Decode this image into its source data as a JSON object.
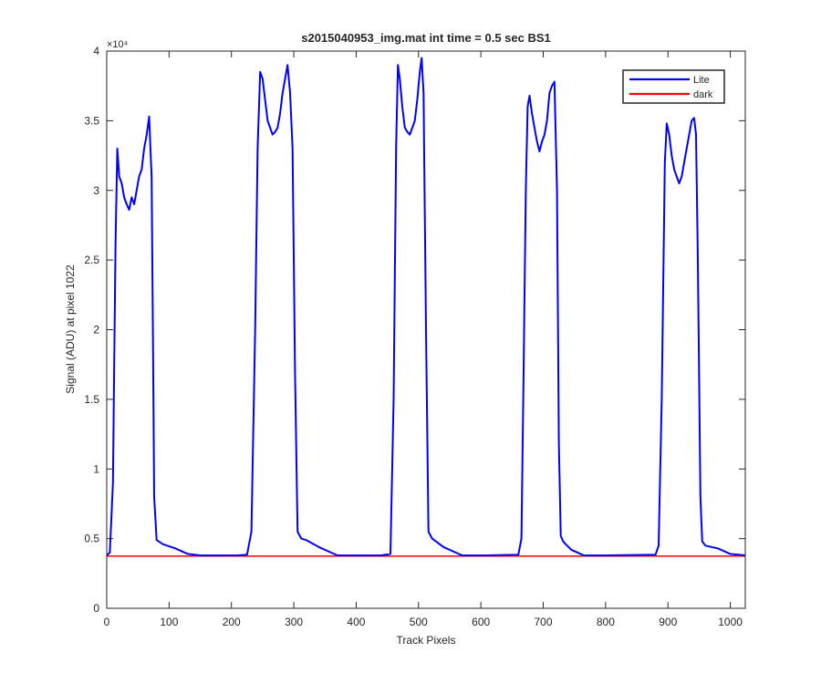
{
  "chart_data": {
    "type": "line",
    "title": "s2015040953_img.mat int time = 0.5 sec   BS1",
    "xlabel": "Track Pixels",
    "ylabel": "Signal (ADU) at pixel 1022",
    "y_multiplier_label": "×10⁴",
    "xlim": [
      0,
      1024
    ],
    "ylim": [
      0,
      40000
    ],
    "xticks": [
      0,
      100,
      200,
      300,
      400,
      500,
      600,
      700,
      800,
      900,
      1000
    ],
    "xtick_labels": [
      "0",
      "100",
      "200",
      "300",
      "400",
      "500",
      "600",
      "700",
      "800",
      "900",
      "1000"
    ],
    "yticks": [
      0,
      5000,
      10000,
      15000,
      20000,
      25000,
      30000,
      35000,
      40000
    ],
    "ytick_labels": [
      "0",
      "0.5",
      "1",
      "1.5",
      "2",
      "2.5",
      "3",
      "3.5",
      "4"
    ],
    "grid": false,
    "legend_position": "top-right",
    "series": [
      {
        "name": "Lite",
        "color": "#0000ff",
        "x": [
          0,
          5,
          10,
          14,
          17,
          20,
          24,
          28,
          32,
          36,
          40,
          44,
          48,
          52,
          56,
          60,
          64,
          68,
          70,
          72,
          74,
          76,
          80,
          90,
          110,
          130,
          150,
          180,
          210,
          225,
          232,
          238,
          242,
          246,
          250,
          254,
          258,
          262,
          266,
          270,
          274,
          278,
          282,
          286,
          290,
          294,
          298,
          302,
          306,
          312,
          320,
          340,
          370,
          400,
          440,
          455,
          460,
          464,
          467,
          470,
          474,
          478,
          482,
          486,
          490,
          494,
          498,
          502,
          505,
          508,
          512,
          516,
          522,
          540,
          570,
          610,
          660,
          665,
          668,
          672,
          675,
          678,
          682,
          686,
          690,
          694,
          698,
          702,
          706,
          710,
          714,
          718,
          722,
          725,
          728,
          732,
          736,
          745,
          765,
          800,
          880,
          885,
          890,
          895,
          898,
          902,
          906,
          910,
          914,
          918,
          922,
          926,
          930,
          934,
          938,
          942,
          945,
          948,
          952,
          955,
          960,
          980,
          1000,
          1024
        ],
        "y": [
          3800,
          4000,
          9000,
          26000,
          33000,
          31000,
          30500,
          29500,
          29000,
          28600,
          29500,
          29000,
          30000,
          31000,
          31500,
          33000,
          34000,
          35300,
          33000,
          31000,
          20000,
          8000,
          4900,
          4600,
          4300,
          3900,
          3800,
          3800,
          3800,
          3850,
          5500,
          20000,
          33000,
          38500,
          38000,
          36500,
          35000,
          34500,
          34000,
          34200,
          34500,
          35500,
          37000,
          38000,
          39000,
          37000,
          33000,
          17000,
          5500,
          5000,
          4900,
          4400,
          3800,
          3800,
          3800,
          3900,
          15000,
          33000,
          39000,
          38000,
          36000,
          34500,
          34200,
          34000,
          34500,
          35000,
          36500,
          38500,
          39500,
          37000,
          20000,
          5500,
          5000,
          4400,
          3800,
          3800,
          3850,
          5000,
          15000,
          30000,
          36000,
          36800,
          35500,
          34500,
          33500,
          32800,
          33500,
          34000,
          35000,
          37000,
          37500,
          37800,
          30000,
          12000,
          5200,
          4800,
          4600,
          4200,
          3800,
          3800,
          3850,
          4500,
          15000,
          32000,
          34800,
          34000,
          32500,
          31500,
          31000,
          30500,
          31000,
          32000,
          33000,
          34000,
          35000,
          35200,
          34000,
          25000,
          8000,
          4800,
          4500,
          4300,
          3900,
          3800
        ]
      },
      {
        "name": "dark",
        "color": "#ff0000",
        "x": [
          0,
          1024
        ],
        "y": [
          3750,
          3750
        ]
      }
    ]
  }
}
